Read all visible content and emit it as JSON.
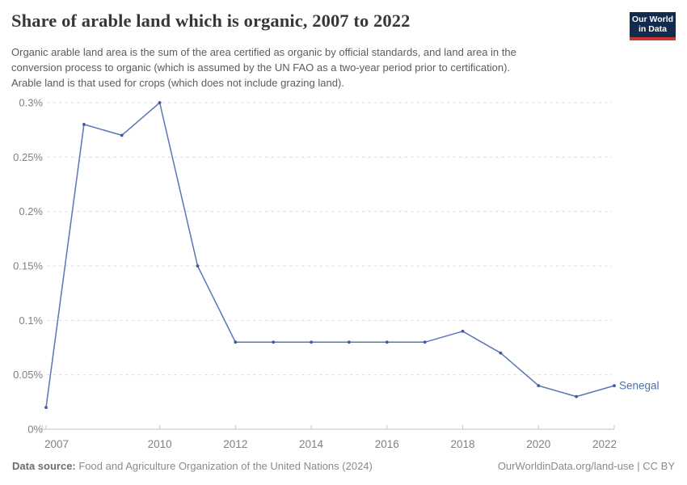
{
  "header": {
    "title": "Share of arable land which is organic, 2007 to 2022",
    "subtitle_lines": [
      "Organic arable land area is the sum of the area certified as organic by official standards, and land area in the",
      "conversion process to organic (which is assumed by the UN FAO as a two-year period prior to certification).",
      "Arable land is that used for crops (which does not include grazing land)."
    ],
    "logo": {
      "line1": "Our World",
      "line2": "in Data",
      "bg_color": "#122a4e",
      "accent_color": "#cc342f"
    }
  },
  "chart_data": {
    "type": "line",
    "title": "Share of arable land which is organic, 2007 to 2022",
    "xlabel": "",
    "ylabel": "",
    "xlim": [
      2007,
      2022
    ],
    "ylim": [
      0,
      0.3
    ],
    "grid": "horizontal-dashed",
    "legend_position": "end-of-line-label",
    "x": [
      2007,
      2008,
      2009,
      2010,
      2011,
      2012,
      2013,
      2014,
      2015,
      2016,
      2017,
      2018,
      2019,
      2020,
      2021,
      2022
    ],
    "series": [
      {
        "name": "Senegal",
        "values": [
          0.02,
          0.28,
          0.27,
          0.3,
          0.15,
          0.08,
          0.08,
          0.08,
          0.08,
          0.08,
          0.08,
          0.09,
          0.07,
          0.04,
          0.03,
          0.04
        ]
      }
    ],
    "x_tick_labels": [
      "2007",
      "2010",
      "2012",
      "2014",
      "2016",
      "2018",
      "2020",
      "2022"
    ],
    "x_tick_values": [
      2007,
      2010,
      2012,
      2014,
      2016,
      2018,
      2020,
      2022
    ],
    "y_tick_values": [
      0,
      0.05,
      0.1,
      0.15,
      0.2,
      0.25,
      0.3
    ],
    "y_tick_labels": [
      "0%",
      "0.05%",
      "0.1%",
      "0.15%",
      "0.2%",
      "0.25%",
      "0.3%"
    ],
    "colors": {
      "line": "#5b76b4",
      "marker": "#41589c",
      "entity_label": "#4d6fad",
      "grid": "#dcdcdc",
      "axis": "#c3c3c3",
      "tick_label": "#818181"
    }
  },
  "footer": {
    "datasource_label": "Data source:",
    "datasource_rest": " Food and Agriculture Organization of the United Nations (2024)",
    "url": "OurWorldinData.org/land-use",
    "separator": " | ",
    "license": "CC BY"
  }
}
